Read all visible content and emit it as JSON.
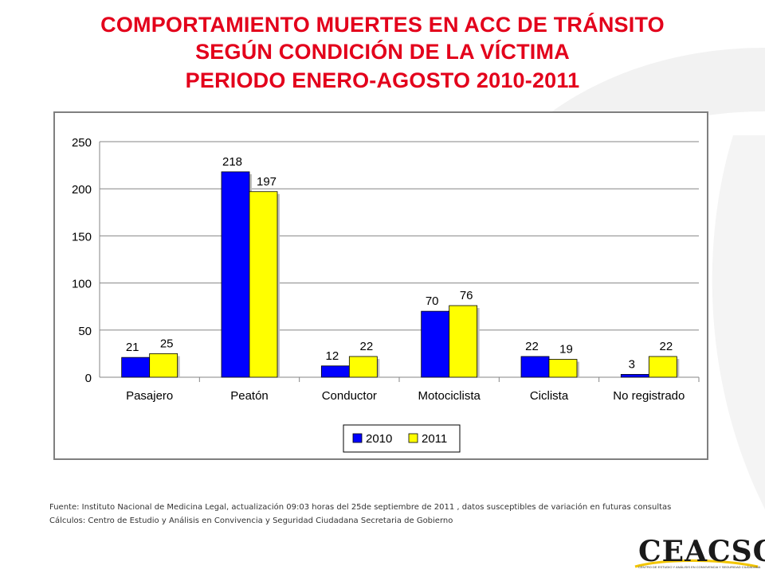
{
  "header": {
    "title_line1": "COMPORTAMIENTO MUERTES EN ACC DE TRÁNSITO",
    "title_line2": "SEGÚN CONDICIÓN DE LA VÍCTIMA",
    "title_line3": "PERIODO ENERO-AGOSTO 2010-2011"
  },
  "colors": {
    "title": "#e3001b",
    "series_2010": "#0000ff",
    "series_2011": "#ffff00",
    "accent_arc": "#f2f2f2"
  },
  "chart_data": {
    "type": "bar",
    "title": "",
    "xlabel": "",
    "ylabel": "",
    "categories": [
      "Pasajero",
      "Peatón",
      "Conductor",
      "Motociclista",
      "Ciclista",
      "No registrado"
    ],
    "series": [
      {
        "name": "2010",
        "color": "#0000ff",
        "values": [
          21,
          218,
          12,
          70,
          22,
          3
        ]
      },
      {
        "name": "2011",
        "color": "#ffff00",
        "values": [
          25,
          197,
          22,
          76,
          19,
          22
        ]
      }
    ],
    "ylim": [
      0,
      250
    ],
    "yticks": [
      0,
      50,
      100,
      150,
      200,
      250
    ],
    "grid": true,
    "legend": "bottom-center",
    "data_labels": true
  },
  "footer": {
    "source": "Fuente: Instituto Nacional de Medicina Legal, actualización  09:03 horas del 25de  septiembre de 2011 , datos susceptibles de variación en futuras consultas",
    "calc": "Cálculos:  Centro de Estudio  y Análisis en Convivencia y Seguridad Ciudadana Secretaria de Gobierno"
  },
  "logo": {
    "word": "CEACSC",
    "subtitle": "CENTRO DE ESTUDIO Y ANÁLISIS EN CONVIVENCIA Y SEGURIDAD CIUDADANA"
  }
}
